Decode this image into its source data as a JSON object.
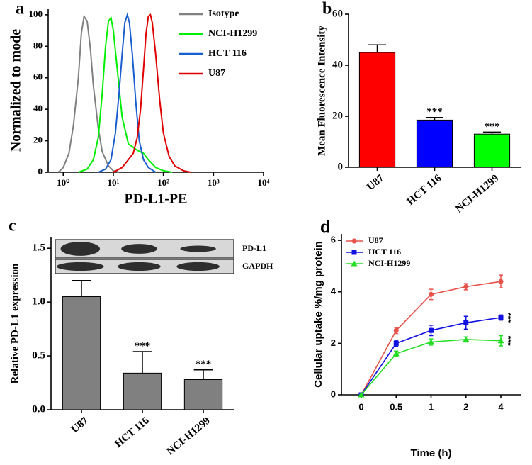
{
  "chart_data": [
    {
      "type": "line",
      "panel_label": "a",
      "xlabel": "PD-L1-PE",
      "ylabel": "Normalized to mode",
      "xscale": "log",
      "xlim": [
        0.5,
        10000
      ],
      "xticks": [
        {
          "value": 1,
          "label": "10⁰"
        },
        {
          "value": 10,
          "label": "10¹"
        },
        {
          "value": 100,
          "label": "10²"
        },
        {
          "value": 1000,
          "label": "10³"
        },
        {
          "value": 10000,
          "label": "10⁴"
        }
      ],
      "ylim": [
        0,
        104
      ],
      "yticks": [
        0,
        20,
        40,
        60,
        80,
        100
      ],
      "legend": "upper right",
      "series": [
        {
          "name": "Isotype",
          "color": "#808080",
          "x": [
            0.8,
            1,
            1.3,
            1.6,
            2,
            2.3,
            2.6,
            3,
            3.5,
            4,
            5,
            6,
            8,
            10,
            13
          ],
          "values": [
            0,
            3,
            12,
            30,
            60,
            88,
            99,
            96,
            78,
            55,
            28,
            13,
            4,
            1,
            0
          ]
        },
        {
          "name": "NCI-H1299",
          "color": "#00ee00",
          "x": [
            2,
            3,
            4,
            5,
            6,
            7,
            8,
            9,
            10,
            12,
            15,
            20,
            30,
            40,
            50,
            70,
            100,
            150
          ],
          "values": [
            0,
            2,
            8,
            22,
            50,
            80,
            96,
            98,
            90,
            65,
            35,
            18,
            14,
            12,
            8,
            3,
            1,
            0
          ]
        },
        {
          "name": "HCT 116",
          "color": "#1a5fd0",
          "x": [
            5,
            7,
            9,
            11,
            13,
            15,
            17,
            19,
            21,
            24,
            28,
            33,
            40,
            50,
            70
          ],
          "values": [
            0,
            2,
            8,
            25,
            50,
            75,
            95,
            100,
            95,
            75,
            45,
            20,
            8,
            3,
            0
          ]
        },
        {
          "name": "U87",
          "color": "#e00000",
          "x": [
            10,
            15,
            20,
            25,
            30,
            35,
            40,
            45,
            50,
            55,
            60,
            70,
            85,
            100,
            130,
            170,
            250,
            350
          ],
          "values": [
            0,
            3,
            8,
            12,
            22,
            40,
            65,
            88,
            99,
            100,
            95,
            75,
            45,
            25,
            10,
            4,
            1,
            0
          ]
        }
      ]
    },
    {
      "type": "bar",
      "panel_label": "b",
      "ylabel": "Mean Fluorescence Intensity",
      "categories": [
        "U87",
        "HCT 116",
        "NCI-H1299"
      ],
      "values": [
        45,
        18.5,
        13
      ],
      "errors": [
        3,
        1,
        0.8
      ],
      "colors": [
        "#ff0000",
        "#0000ff",
        "#00ff00"
      ],
      "significance": [
        null,
        "***",
        "***"
      ],
      "ylim": [
        0,
        60
      ],
      "yticks": [
        0,
        20,
        40,
        60
      ]
    },
    {
      "type": "bar",
      "panel_label": "c",
      "ylabel": "Relative PD-L1 expression",
      "categories": [
        "U87",
        "HCT 116",
        "NCI-H1299"
      ],
      "values": [
        1.05,
        0.34,
        0.28
      ],
      "errors": [
        0.15,
        0.2,
        0.09
      ],
      "color": "#808080",
      "significance": [
        null,
        "***",
        "***"
      ],
      "blot_labels": [
        "PD-L1",
        "GAPDH"
      ],
      "ylim": [
        0,
        1.6
      ],
      "yticks": [
        {
          "value": 0,
          "label": "0.0"
        },
        {
          "value": 0.5,
          "label": "0.5"
        },
        {
          "value": 1,
          "label": "1.0"
        },
        {
          "value": 1.5,
          "label": "1.5"
        }
      ]
    },
    {
      "type": "line",
      "panel_label": "d",
      "xlabel": "Time (h)",
      "ylabel": "Cellular uptake %/mg protein",
      "categories": [
        "0",
        "0.5",
        "1",
        "2",
        "4"
      ],
      "ylim": [
        0,
        6.25
      ],
      "yticks": [
        0,
        2,
        4,
        6
      ],
      "legend": "upper left",
      "series": [
        {
          "name": "U87",
          "color": "#e8504a",
          "marker": "circle",
          "values": [
            0,
            2.5,
            3.9,
            4.2,
            4.4
          ],
          "errors": [
            0,
            0.12,
            0.2,
            0.12,
            0.25
          ]
        },
        {
          "name": "HCT 116",
          "color": "#1010e0",
          "marker": "square",
          "values": [
            0,
            2.0,
            2.5,
            2.8,
            3.0
          ],
          "errors": [
            0,
            0.12,
            0.2,
            0.25,
            0.1
          ],
          "significance": "***"
        },
        {
          "name": "NCI-H1299",
          "color": "#22dd22",
          "marker": "triangle",
          "values": [
            0,
            1.6,
            2.05,
            2.15,
            2.1
          ],
          "errors": [
            0,
            0.1,
            0.12,
            0.1,
            0.2
          ],
          "significance": "***"
        }
      ]
    }
  ]
}
